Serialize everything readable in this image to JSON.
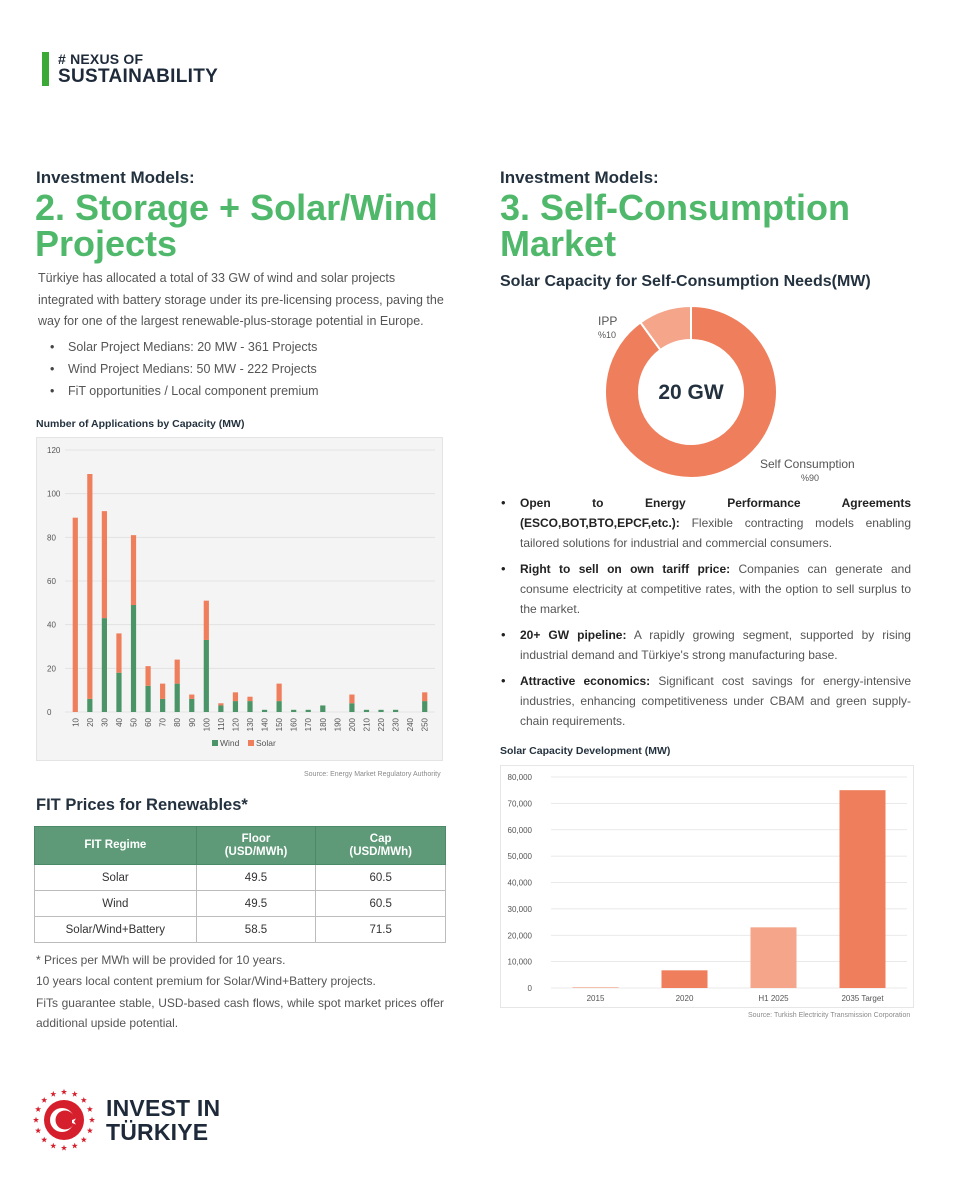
{
  "brand": {
    "line1": "# NEXUS OF",
    "line2": "SUSTAINABILITY"
  },
  "left": {
    "kicker": "Investment Models:",
    "title_line1": "2. Storage + Solar/Wind",
    "title_line2": "Projects",
    "intro": "Türkiye has allocated a total of 33 GW of wind and solar projects integrated with battery storage under its pre-licensing process, paving the way for one of the largest renewable-plus-storage potential in Europe.",
    "bullets": [
      "Solar Project Medians: 20 MW - 361 Projects",
      "Wind Project Medians: 50 MW - 222 Projects",
      "FiT opportunities / Local component premium"
    ]
  },
  "right": {
    "kicker": "Investment Models:",
    "title_line1": "3. Self-Consumption",
    "title_line2": "Market",
    "subtitle": "Solar Capacity for Self-Consumption Needs(MW)"
  },
  "colors": {
    "green": "#4fb86a",
    "wind": "#4a9467",
    "solar": "#ef7e5c",
    "ipp": "#f4a58a",
    "table_header": "#5e9a78"
  },
  "charts": {
    "applications": {
      "title": "Number of Applications by Capacity (MW)",
      "source": "Source: Energy Market Regulatory Authority",
      "legend_wind": "Wind",
      "legend_solar": "Solar"
    },
    "donut": {
      "center_label": "20 GW",
      "ipp_label": "IPP",
      "ipp_pct": "%10",
      "self_label": "Self Consumption",
      "self_pct": "%90"
    },
    "development": {
      "title": "Solar Capacity Development (MW)",
      "source": "Source: Turkish Electricity Transmission Corporation"
    }
  },
  "chart_data": [
    {
      "type": "bar",
      "stacked": true,
      "title": "Number of Applications by Capacity (MW)",
      "xlabel": "",
      "ylabel": "",
      "ylim": [
        0,
        120
      ],
      "yticks": [
        "0",
        "20",
        "40",
        "60",
        "80",
        "100",
        "120"
      ],
      "categories": [
        "10",
        "20",
        "30",
        "40",
        "50",
        "60",
        "70",
        "80",
        "90",
        "100",
        "110",
        "120",
        "130",
        "140",
        "150",
        "160",
        "170",
        "180",
        "190",
        "200",
        "210",
        "220",
        "230",
        "240",
        "250"
      ],
      "series": [
        {
          "name": "Wind",
          "values": [
            0,
            6,
            43,
            18,
            49,
            12,
            6,
            13,
            6,
            33,
            3,
            5,
            5,
            1,
            5,
            1,
            1,
            3,
            0,
            4,
            1,
            1,
            1,
            0,
            5
          ]
        },
        {
          "name": "Solar",
          "values": [
            89,
            103,
            49,
            18,
            32,
            9,
            7,
            11,
            2,
            18,
            1,
            4,
            2,
            0,
            8,
            0,
            0,
            0,
            0,
            4,
            0,
            0,
            0,
            0,
            4
          ]
        }
      ],
      "legend": "bottom",
      "grid": true
    },
    {
      "type": "pie",
      "donut": true,
      "labels": [
        "IPP",
        "Self Consumption"
      ],
      "values": [
        10,
        90
      ]
    },
    {
      "type": "bar",
      "title": "Solar Capacity Development (MW)",
      "xlabel": "",
      "ylabel": "",
      "categories": [
        "2015",
        "2020",
        "H1 2025",
        "2035 Target"
      ],
      "values": [
        250,
        6700,
        23000,
        75000
      ],
      "ylim": [
        0,
        80000
      ],
      "yticks": [
        "0",
        "10,000",
        "20,000",
        "30,000",
        "40,000",
        "50,000",
        "60,000",
        "70,000",
        "80,000"
      ],
      "grid": true
    }
  ],
  "fit": {
    "title": "FIT Prices for Renewables*",
    "headers": [
      "FIT Regime",
      "Floor\n(USD/MWh)",
      "Cap\n(USD/MWh)"
    ],
    "header_regime": "FIT Regime",
    "header_floor_1": "Floor",
    "header_floor_2": "(USD/MWh)",
    "header_cap_1": "Cap",
    "header_cap_2": "(USD/MWh)",
    "rows": [
      [
        "Solar",
        "49.5",
        "60.5"
      ],
      [
        "Wind",
        "49.5",
        "60.5"
      ],
      [
        "Solar/Wind+Battery",
        "58.5",
        "71.5"
      ]
    ],
    "note1": "* Prices per MWh will be provided for 10 years.",
    "note2": "10 years local content premium for Solar/Wind+Battery projects.",
    "note3": "FiTs guarantee stable, USD-based cash flows, while spot market prices offer additional upside potential."
  },
  "features": [
    {
      "bold": "Open to Energy Performance Agreements (ESCO,BOT,BTO,EPCF,etc.):",
      "text": " Flexible contracting models enabling tailored solutions for industrial and commercial consumers."
    },
    {
      "bold": "Right to sell on own tariff price:",
      "text": " Companies can generate and consume electricity at competitive rates, with the option to sell surplus to the market."
    },
    {
      "bold": "20+ GW pipeline:",
      "text": " A rapidly growing segment, supported by rising industrial demand and Türkiye's strong manufacturing base."
    },
    {
      "bold": "Attractive economics:",
      "text": " Significant cost savings for energy-intensive industries, enhancing competitiveness under CBAM and green supply-chain requirements."
    }
  ],
  "footer": {
    "line1": "INVEST IN",
    "line2": "TÜRKIYE"
  }
}
